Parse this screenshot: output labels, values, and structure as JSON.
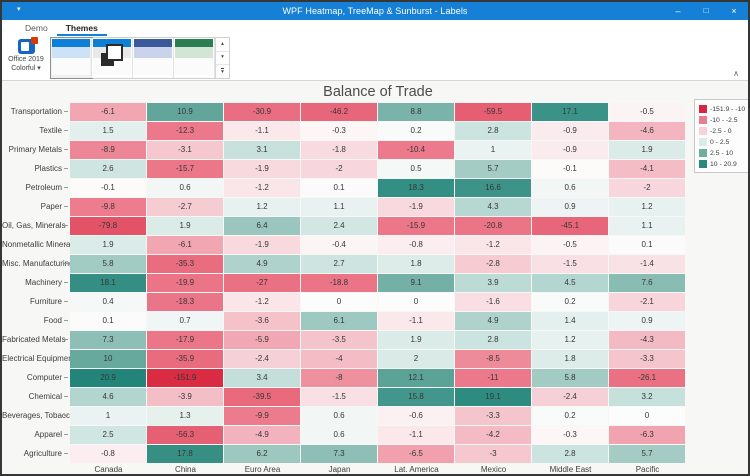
{
  "window": {
    "title": "WPF Heatmap, TreeMap & Sunburst - Labels",
    "controls": {
      "minimize": "–",
      "maximize": "□",
      "close": "×"
    },
    "quick_access_caret": "▾"
  },
  "ribbon": {
    "tabs": [
      {
        "label": "Demo",
        "selected": false
      },
      {
        "label": "Themes",
        "selected": true
      }
    ],
    "theme_button": {
      "line1": "Office 2019",
      "line2": "Colorful",
      "caret": "▾"
    },
    "group_label": "Appearance",
    "gallery": {
      "swatches": [
        {
          "name": "office-2019-colorful",
          "top": "#0e7fd6",
          "band": "#cde2f6",
          "selected": true,
          "overlay": ""
        },
        {
          "name": "office-2019-black",
          "top": "#0e7fd6",
          "band": "#e9e9e9",
          "selected": false,
          "overlay": "squares"
        },
        {
          "name": "office-2019-dark-blue",
          "top": "#3b5a9a",
          "band": "#c9d3ec",
          "selected": false,
          "overlay": ""
        },
        {
          "name": "office-2019-dark-green",
          "top": "#2c7d52",
          "band": "#d3e6d6",
          "selected": false,
          "overlay": ""
        }
      ],
      "controls": {
        "up": "▴",
        "down": "▾",
        "more": "▾"
      }
    },
    "collapse_icon": "∧"
  },
  "chart_data": {
    "type": "heatmap",
    "title": "Balance of Trade",
    "rows": [
      "Transportation",
      "Textile",
      "Primary Metals",
      "Plastics",
      "Petroleum",
      "Paper",
      "Oil, Gas, Minerals",
      "Nonmetallic Minerals",
      "Misc. Manufacturing",
      "Machinery",
      "Furniture",
      "Food",
      "Fabricated Metals",
      "Electrical Equipment",
      "Computer",
      "Chemical",
      "Beverages, Tobacco",
      "Apparel",
      "Agriculture"
    ],
    "columns": [
      "Canada",
      "China",
      "Euro Area",
      "Japan",
      "Lat. America",
      "Mexico",
      "Middle East",
      "Pacific"
    ],
    "values": [
      [
        -6.1,
        10.9,
        -30.9,
        -46.2,
        8.8,
        -59.5,
        17.1,
        -0.5
      ],
      [
        1.5,
        -12.3,
        -1.1,
        -0.3,
        0.2,
        2.8,
        -0.9,
        -4.6
      ],
      [
        -8.9,
        -3.1,
        3.1,
        -1.8,
        -10.4,
        1,
        -0.9,
        1.9
      ],
      [
        2.6,
        -15.7,
        -1.9,
        -2,
        0.5,
        5.7,
        -0.1,
        -4.1
      ],
      [
        -0.1,
        0.6,
        -1.2,
        0.1,
        18.3,
        16.6,
        0.6,
        -2
      ],
      [
        -9.8,
        -2.7,
        1.2,
        1.1,
        -1.9,
        4.3,
        0.9,
        1.2
      ],
      [
        -79.8,
        1.9,
        6.4,
        2.4,
        -15.9,
        -20.8,
        -45.1,
        1.1
      ],
      [
        1.9,
        -6.1,
        -1.9,
        -0.4,
        -0.8,
        -1.2,
        -0.5,
        0.1
      ],
      [
        5.8,
        -35.3,
        4.9,
        2.7,
        1.8,
        -2.8,
        -1.5,
        -1.4
      ],
      [
        18.1,
        -19.9,
        -27,
        -18.8,
        9.1,
        3.9,
        4.5,
        7.6
      ],
      [
        0.4,
        -18.3,
        -1.2,
        0,
        0,
        -1.6,
        0.2,
        -2.1
      ],
      [
        0.1,
        0.7,
        -3.6,
        6.1,
        -1.1,
        4.9,
        1.4,
        0.9
      ],
      [
        7.3,
        -17.9,
        -5.9,
        -3.5,
        1.9,
        2.8,
        1.2,
        -4.3
      ],
      [
        10,
        -35.9,
        -2.4,
        -4,
        2,
        -8.5,
        1.8,
        -3.3
      ],
      [
        20.9,
        -151.9,
        3.4,
        -8,
        12.1,
        -11,
        5.8,
        -26.1
      ],
      [
        4.6,
        -3.9,
        -39.5,
        -1.5,
        15.8,
        19.1,
        -2.4,
        3.2
      ],
      [
        1,
        1.3,
        -9.9,
        0.6,
        -0.6,
        -3.3,
        0.2,
        0
      ],
      [
        2.5,
        -56.3,
        -4.9,
        0.6,
        -1.1,
        -4.2,
        -0.3,
        -6.3
      ],
      [
        -0.8,
        17.8,
        6.2,
        7.3,
        -6.5,
        -3,
        2.8,
        5.7
      ]
    ],
    "value_range": [
      -151.9,
      20.9
    ],
    "color_scale": {
      "stops": [
        [
          -151.9,
          "#d92b41"
        ],
        [
          -10,
          "#ec7a8c"
        ],
        [
          -2.5,
          "#f6ced5"
        ],
        [
          0,
          "#fdfcfc"
        ],
        [
          2.5,
          "#d0e6e2"
        ],
        [
          10,
          "#68a99e"
        ],
        [
          20.9,
          "#23857a"
        ]
      ]
    },
    "legend": {
      "position": "right",
      "items": [
        {
          "color": "#d7263f",
          "label": "-151.9 - -10"
        },
        {
          "color": "#e87e90",
          "label": "-10 - -2.5"
        },
        {
          "color": "#f7d3d9",
          "label": "-2.5 - 0"
        },
        {
          "color": "#dcebe8",
          "label": "0 - 2.5"
        },
        {
          "color": "#6fae9f",
          "label": "2.5 - 10"
        },
        {
          "color": "#2b867b",
          "label": "10 - 20.9"
        }
      ]
    }
  }
}
